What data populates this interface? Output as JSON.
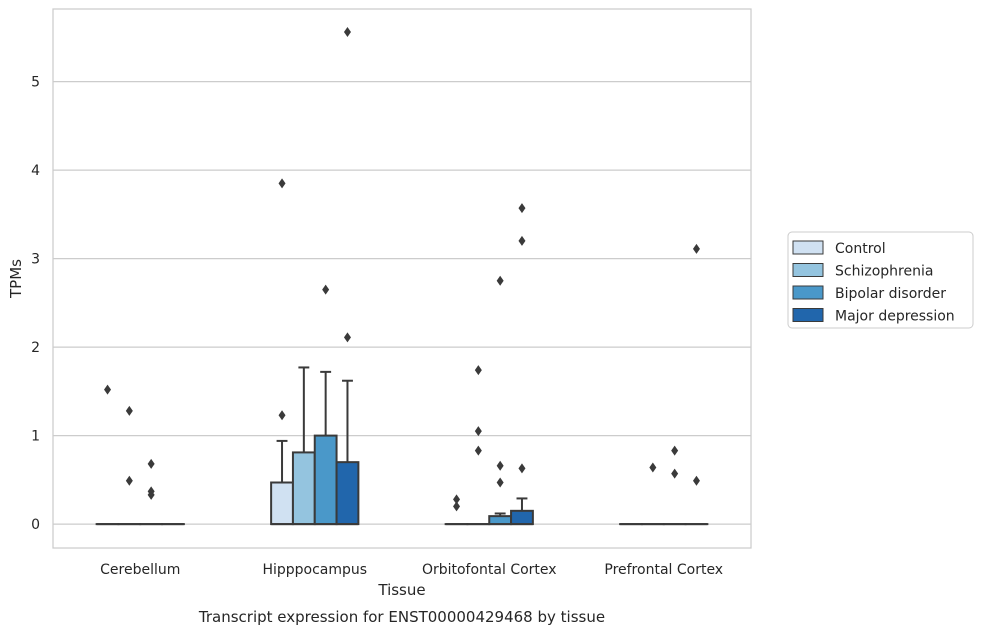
{
  "chart_data": {
    "type": "box",
    "title": "",
    "xlabel": "Tissue",
    "ylabel": "TPMs",
    "caption": "Transcript expression for ENST00000429468 by tissue",
    "ylim": [
      -0.27,
      5.82
    ],
    "yticks": [
      "0",
      "1",
      "2",
      "3",
      "4",
      "5"
    ],
    "grid": "horizontal",
    "legend_position": "right",
    "categories": [
      "Cerebellum",
      "Hipppocampus",
      "Orbitofontal Cortex",
      "Prefrontal Cortex"
    ],
    "series": [
      {
        "name": "Control",
        "color": "#d0e1f2",
        "boxes": [
          {
            "q1": 0,
            "median": 0,
            "q3": 0,
            "whisker_low": 0,
            "whisker_high": 0,
            "outliers": [
              1.52
            ]
          },
          {
            "q1": 0,
            "median": 0,
            "q3": 0.47,
            "whisker_low": 0,
            "whisker_high": 0.94,
            "outliers": [
              1.23,
              3.85
            ]
          },
          {
            "q1": 0,
            "median": 0,
            "q3": 0,
            "whisker_low": 0,
            "whisker_high": 0,
            "outliers": [
              0.28,
              0.2
            ]
          },
          {
            "q1": 0,
            "median": 0,
            "q3": 0,
            "whisker_low": 0,
            "whisker_high": 0,
            "outliers": []
          }
        ]
      },
      {
        "name": "Schizophrenia",
        "color": "#94c4df",
        "boxes": [
          {
            "q1": 0,
            "median": 0,
            "q3": 0,
            "whisker_low": 0,
            "whisker_high": 0,
            "outliers": [
              1.28,
              0.49
            ]
          },
          {
            "q1": 0,
            "median": 0,
            "q3": 0.81,
            "whisker_low": 0,
            "whisker_high": 1.77,
            "outliers": []
          },
          {
            "q1": 0,
            "median": 0,
            "q3": 0,
            "whisker_low": 0,
            "whisker_high": 0,
            "outliers": [
              1.74,
              1.05,
              0.83
            ]
          },
          {
            "q1": 0,
            "median": 0,
            "q3": 0,
            "whisker_low": 0,
            "whisker_high": 0,
            "outliers": [
              0.64
            ]
          }
        ]
      },
      {
        "name": "Bipolar disorder",
        "color": "#4a98c9",
        "boxes": [
          {
            "q1": 0,
            "median": 0,
            "q3": 0,
            "whisker_low": 0,
            "whisker_high": 0,
            "outliers": [
              0.68,
              0.37,
              0.33
            ]
          },
          {
            "q1": 0,
            "median": 0,
            "q3": 1.0,
            "whisker_low": 0,
            "whisker_high": 1.72,
            "outliers": [
              2.65
            ]
          },
          {
            "q1": 0,
            "median": 0,
            "q3": 0.09,
            "whisker_low": 0,
            "whisker_high": 0.12,
            "outliers": [
              2.75,
              0.66,
              0.47
            ]
          },
          {
            "q1": 0,
            "median": 0,
            "q3": 0,
            "whisker_low": 0,
            "whisker_high": 0,
            "outliers": [
              0.83,
              0.57
            ]
          }
        ]
      },
      {
        "name": "Major depression",
        "color": "#2166ac",
        "boxes": [
          {
            "q1": 0,
            "median": 0,
            "q3": 0,
            "whisker_low": 0,
            "whisker_high": 0,
            "outliers": []
          },
          {
            "q1": 0,
            "median": 0,
            "q3": 0.7,
            "whisker_low": 0,
            "whisker_high": 1.62,
            "outliers": [
              5.56,
              2.11
            ]
          },
          {
            "q1": 0,
            "median": 0,
            "q3": 0.15,
            "whisker_low": 0,
            "whisker_high": 0.29,
            "outliers": [
              3.57,
              3.2,
              0.63
            ]
          },
          {
            "q1": 0,
            "median": 0,
            "q3": 0,
            "whisker_low": 0,
            "whisker_high": 0,
            "outliers": [
              3.11,
              0.49
            ]
          }
        ]
      }
    ]
  }
}
